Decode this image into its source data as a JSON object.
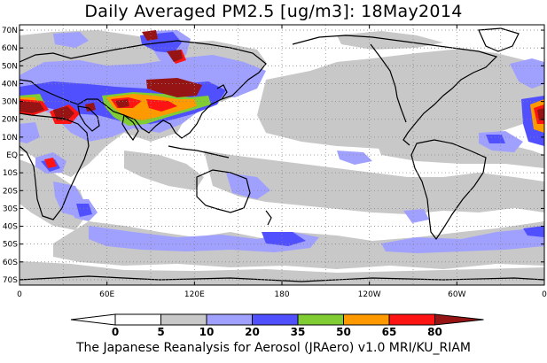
{
  "title": "Daily Averaged PM2.5 [ug/m3]: 18May2014",
  "credit": "The Japanese Reanalysis for Aerosol (JRAero) v1.0 MRI/KU_RIAM",
  "lat_labels": [
    "70N",
    "60N",
    "50N",
    "40N",
    "30N",
    "20N",
    "10N",
    "EQ",
    "10S",
    "20S",
    "30S",
    "40S",
    "50S",
    "60S",
    "70S"
  ],
  "lon_labels": [
    "0",
    "60E",
    "120E",
    "180",
    "120W",
    "60W",
    "0"
  ],
  "colorbar": {
    "labels": [
      "0",
      "5",
      "10",
      "20",
      "35",
      "50",
      "65",
      "80"
    ],
    "colors": [
      "#ffffff",
      "#c8c8c8",
      "#a0a0ff",
      "#5050ff",
      "#7fcc33",
      "#ff9900",
      "#ff1414",
      "#961414"
    ]
  }
}
